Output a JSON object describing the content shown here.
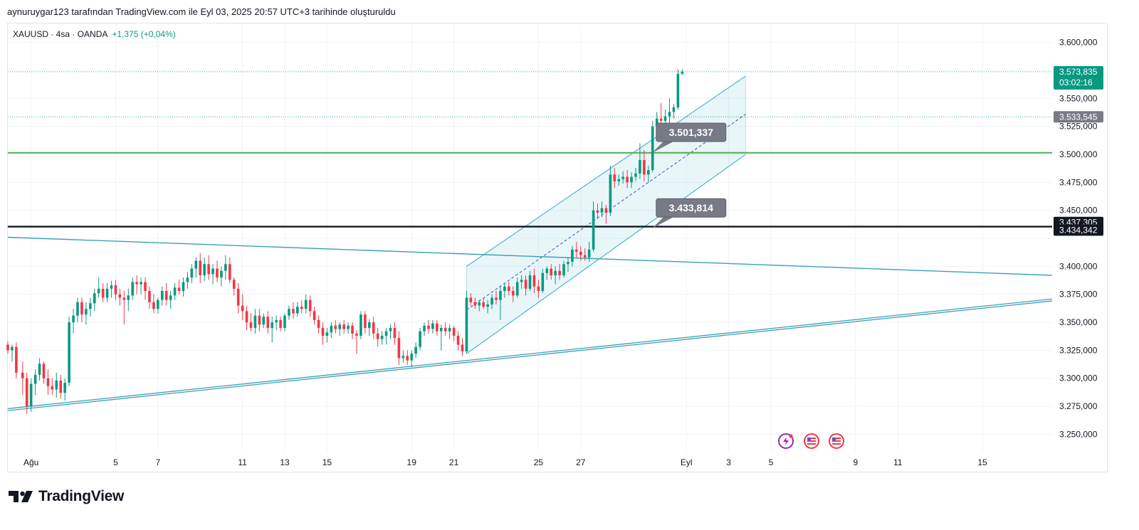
{
  "header": {
    "caption": "aynuruygar123 tarafından TradingView.com ile Eyl 03, 2025 20:57 UTC+3 tarihinde oluşturuldu"
  },
  "legend": {
    "symbol": "XAUUSD · 4sa · OANDA",
    "change": "+1,375 (+0,04%)"
  },
  "brand": {
    "name": "TradingView"
  },
  "colors": {
    "up": "#089981",
    "down": "#f23645",
    "channel": "#4fb8cc",
    "green_line": "#4caf50",
    "black_line": "#131722"
  },
  "chart_data": {
    "type": "candlestick",
    "y_ticks": [
      3250,
      3275,
      3300,
      3325,
      3350,
      3375,
      3400,
      3425,
      3450,
      3475,
      3500,
      3525,
      3550,
      3575,
      3600
    ],
    "y_tick_labels": [
      "3.250,000",
      "3.275,000",
      "3.300,000",
      "3.325,000",
      "3.350,000",
      "3.375,000",
      "3.400,000",
      "",
      "3.450,000",
      "3.475,000",
      "3.500,000",
      "3.525,000",
      "3.550,000",
      "",
      "3.600,000"
    ],
    "ylim": [
      3235,
      3617
    ],
    "x_labels": [
      "Ağu",
      "5",
      "7",
      "11",
      "13",
      "15",
      "19",
      "21",
      "25",
      "27",
      "Eyl",
      "3",
      "5",
      "9",
      "11",
      "15"
    ],
    "x_label_days": [
      1,
      5,
      7,
      11,
      13,
      15,
      19,
      21,
      25,
      27,
      32,
      34,
      36,
      40,
      42,
      46
    ],
    "xlim": [
      -0.1,
      49.3
    ],
    "candles": [
      [
        -0.1,
        3330,
        3333,
        3322,
        3325
      ],
      [
        0.1,
        3325,
        3330,
        3315,
        3328
      ],
      [
        0.3,
        3328,
        3332,
        3300,
        3305
      ],
      [
        0.6,
        3305,
        3315,
        3285,
        3300
      ],
      [
        0.8,
        3300,
        3305,
        3268,
        3275
      ],
      [
        1.0,
        3275,
        3300,
        3270,
        3295
      ],
      [
        1.2,
        3295,
        3308,
        3285,
        3303
      ],
      [
        1.4,
        3303,
        3318,
        3298,
        3313
      ],
      [
        1.6,
        3313,
        3315,
        3295,
        3300
      ],
      [
        1.8,
        3300,
        3308,
        3285,
        3293
      ],
      [
        2.0,
        3293,
        3300,
        3285,
        3290
      ],
      [
        2.2,
        3290,
        3305,
        3283,
        3298
      ],
      [
        2.4,
        3298,
        3303,
        3282,
        3287
      ],
      [
        2.6,
        3287,
        3300,
        3280,
        3296
      ],
      [
        2.8,
        3296,
        3355,
        3293,
        3350
      ],
      [
        3.0,
        3350,
        3362,
        3340,
        3356
      ],
      [
        3.2,
        3356,
        3372,
        3350,
        3368
      ],
      [
        3.4,
        3368,
        3372,
        3350,
        3357
      ],
      [
        3.6,
        3357,
        3368,
        3348,
        3362
      ],
      [
        3.8,
        3362,
        3372,
        3355,
        3367
      ],
      [
        4.0,
        3367,
        3380,
        3360,
        3376
      ],
      [
        4.2,
        3376,
        3390,
        3372,
        3380
      ],
      [
        4.4,
        3380,
        3385,
        3368,
        3372
      ],
      [
        4.6,
        3372,
        3385,
        3368,
        3380
      ],
      [
        4.8,
        3380,
        3387,
        3372,
        3383
      ],
      [
        5.0,
        3383,
        3388,
        3370,
        3375
      ],
      [
        5.2,
        3375,
        3380,
        3365,
        3372
      ],
      [
        5.4,
        3372,
        3378,
        3348,
        3370
      ],
      [
        5.6,
        3370,
        3380,
        3360,
        3374
      ],
      [
        5.8,
        3374,
        3390,
        3370,
        3386
      ],
      [
        6.0,
        3386,
        3392,
        3375,
        3384
      ],
      [
        6.2,
        3384,
        3390,
        3375,
        3386
      ],
      [
        6.4,
        3386,
        3390,
        3370,
        3378
      ],
      [
        6.6,
        3378,
        3382,
        3362,
        3368
      ],
      [
        6.8,
        3368,
        3375,
        3358,
        3362
      ],
      [
        7.0,
        3362,
        3372,
        3358,
        3370
      ],
      [
        7.2,
        3370,
        3382,
        3365,
        3378
      ],
      [
        7.4,
        3378,
        3385,
        3365,
        3370
      ],
      [
        7.6,
        3370,
        3378,
        3362,
        3374
      ],
      [
        7.8,
        3374,
        3385,
        3370,
        3381
      ],
      [
        8.0,
        3381,
        3388,
        3375,
        3378
      ],
      [
        8.2,
        3378,
        3390,
        3373,
        3386
      ],
      [
        8.4,
        3386,
        3395,
        3380,
        3390
      ],
      [
        8.6,
        3390,
        3402,
        3385,
        3398
      ],
      [
        8.8,
        3398,
        3408,
        3390,
        3405
      ],
      [
        9.0,
        3405,
        3412,
        3385,
        3392
      ],
      [
        9.2,
        3392,
        3408,
        3387,
        3402
      ],
      [
        9.4,
        3402,
        3410,
        3388,
        3393
      ],
      [
        9.6,
        3393,
        3402,
        3384,
        3398
      ],
      [
        9.8,
        3398,
        3405,
        3386,
        3390
      ],
      [
        10.0,
        3390,
        3400,
        3382,
        3396
      ],
      [
        10.2,
        3396,
        3410,
        3388,
        3402
      ],
      [
        10.4,
        3402,
        3408,
        3385,
        3388
      ],
      [
        10.6,
        3388,
        3390,
        3374,
        3380
      ],
      [
        10.8,
        3380,
        3385,
        3358,
        3365
      ],
      [
        11.0,
        3365,
        3375,
        3352,
        3360
      ],
      [
        11.2,
        3360,
        3365,
        3343,
        3350
      ],
      [
        11.4,
        3350,
        3358,
        3342,
        3345
      ],
      [
        11.6,
        3345,
        3362,
        3340,
        3356
      ],
      [
        11.8,
        3356,
        3362,
        3342,
        3348
      ],
      [
        12.0,
        3348,
        3358,
        3345,
        3355
      ],
      [
        12.2,
        3355,
        3360,
        3340,
        3345
      ],
      [
        12.4,
        3345,
        3355,
        3332,
        3350
      ],
      [
        12.6,
        3350,
        3356,
        3343,
        3352
      ],
      [
        12.8,
        3352,
        3355,
        3342,
        3345
      ],
      [
        13.0,
        3345,
        3358,
        3342,
        3356
      ],
      [
        13.2,
        3356,
        3365,
        3352,
        3362
      ],
      [
        13.4,
        3362,
        3368,
        3353,
        3358
      ],
      [
        13.6,
        3358,
        3368,
        3355,
        3364
      ],
      [
        13.8,
        3364,
        3370,
        3358,
        3362
      ],
      [
        14.0,
        3362,
        3375,
        3358,
        3370
      ],
      [
        14.2,
        3370,
        3374,
        3355,
        3360
      ],
      [
        14.4,
        3360,
        3364,
        3348,
        3352
      ],
      [
        14.6,
        3352,
        3356,
        3340,
        3345
      ],
      [
        14.8,
        3345,
        3350,
        3330,
        3338
      ],
      [
        15.0,
        3338,
        3345,
        3332,
        3341
      ],
      [
        15.2,
        3341,
        3350,
        3336,
        3347
      ],
      [
        15.4,
        3347,
        3352,
        3340,
        3344
      ],
      [
        15.6,
        3344,
        3350,
        3338,
        3348
      ],
      [
        15.8,
        3348,
        3352,
        3340,
        3344
      ],
      [
        16.0,
        3344,
        3350,
        3340,
        3347
      ],
      [
        16.2,
        3347,
        3350,
        3335,
        3340
      ],
      [
        16.4,
        3340,
        3343,
        3322,
        3338
      ],
      [
        16.6,
        3338,
        3360,
        3335,
        3357
      ],
      [
        16.8,
        3357,
        3360,
        3340,
        3345
      ],
      [
        17.0,
        3345,
        3353,
        3338,
        3350
      ],
      [
        17.2,
        3350,
        3355,
        3335,
        3340
      ],
      [
        17.4,
        3340,
        3345,
        3328,
        3335
      ],
      [
        17.6,
        3335,
        3342,
        3330,
        3338
      ],
      [
        17.8,
        3338,
        3345,
        3330,
        3342
      ],
      [
        18.0,
        3342,
        3348,
        3335,
        3345
      ],
      [
        18.2,
        3345,
        3350,
        3330,
        3336
      ],
      [
        18.4,
        3336,
        3342,
        3312,
        3318
      ],
      [
        18.6,
        3318,
        3325,
        3314,
        3320
      ],
      [
        18.8,
        3320,
        3325,
        3312,
        3316
      ],
      [
        19.0,
        3316,
        3325,
        3310,
        3322
      ],
      [
        19.2,
        3322,
        3332,
        3318,
        3328
      ],
      [
        19.4,
        3328,
        3345,
        3325,
        3342
      ],
      [
        19.6,
        3342,
        3350,
        3338,
        3347
      ],
      [
        19.8,
        3347,
        3352,
        3340,
        3344
      ],
      [
        20.0,
        3344,
        3352,
        3340,
        3349
      ],
      [
        20.2,
        3349,
        3352,
        3338,
        3342
      ],
      [
        20.4,
        3342,
        3348,
        3325,
        3345
      ],
      [
        20.6,
        3345,
        3350,
        3338,
        3342
      ],
      [
        20.8,
        3342,
        3348,
        3335,
        3345
      ],
      [
        21.0,
        3345,
        3347,
        3333,
        3338
      ],
      [
        21.2,
        3338,
        3342,
        3325,
        3330
      ],
      [
        21.4,
        3330,
        3336,
        3320,
        3324
      ],
      [
        21.6,
        3324,
        3378,
        3322,
        3372
      ],
      [
        21.8,
        3372,
        3376,
        3365,
        3368
      ],
      [
        22.0,
        3368,
        3372,
        3362,
        3365
      ],
      [
        22.2,
        3365,
        3370,
        3360,
        3368
      ],
      [
        22.4,
        3368,
        3372,
        3362,
        3364
      ],
      [
        22.6,
        3364,
        3370,
        3358,
        3366
      ],
      [
        22.8,
        3366,
        3375,
        3362,
        3372
      ],
      [
        23.0,
        3372,
        3378,
        3366,
        3370
      ],
      [
        23.2,
        3370,
        3382,
        3352,
        3378
      ],
      [
        23.4,
        3378,
        3385,
        3372,
        3382
      ],
      [
        23.6,
        3382,
        3386,
        3374,
        3378
      ],
      [
        23.8,
        3378,
        3382,
        3368,
        3374
      ],
      [
        24.0,
        3374,
        3390,
        3372,
        3386
      ],
      [
        24.2,
        3386,
        3392,
        3380,
        3388
      ],
      [
        24.4,
        3388,
        3392,
        3374,
        3380
      ],
      [
        24.6,
        3380,
        3396,
        3378,
        3392
      ],
      [
        24.8,
        3392,
        3398,
        3376,
        3382
      ],
      [
        25.0,
        3382,
        3388,
        3372,
        3378
      ],
      [
        25.2,
        3378,
        3398,
        3376,
        3394
      ],
      [
        25.4,
        3394,
        3400,
        3388,
        3398
      ],
      [
        25.6,
        3398,
        3402,
        3388,
        3392
      ],
      [
        25.8,
        3392,
        3400,
        3384,
        3396
      ],
      [
        26.0,
        3396,
        3402,
        3388,
        3392
      ],
      [
        26.2,
        3392,
        3405,
        3390,
        3402
      ],
      [
        26.4,
        3402,
        3408,
        3395,
        3404
      ],
      [
        26.6,
        3404,
        3418,
        3400,
        3415
      ],
      [
        26.8,
        3415,
        3422,
        3408,
        3413
      ],
      [
        27.0,
        3413,
        3418,
        3405,
        3410
      ],
      [
        27.2,
        3410,
        3416,
        3405,
        3408
      ],
      [
        27.4,
        3408,
        3422,
        3404,
        3415
      ],
      [
        27.6,
        3415,
        3458,
        3413,
        3450
      ],
      [
        27.8,
        3450,
        3456,
        3442,
        3448
      ],
      [
        28.0,
        3448,
        3458,
        3444,
        3452
      ],
      [
        28.2,
        3452,
        3455,
        3438,
        3448
      ],
      [
        28.4,
        3448,
        3490,
        3445,
        3482
      ],
      [
        28.6,
        3482,
        3488,
        3470,
        3476
      ],
      [
        28.8,
        3476,
        3482,
        3472,
        3478
      ],
      [
        29.0,
        3478,
        3485,
        3474,
        3480
      ],
      [
        29.2,
        3480,
        3486,
        3470,
        3475
      ],
      [
        29.4,
        3475,
        3484,
        3470,
        3480
      ],
      [
        29.6,
        3480,
        3488,
        3476,
        3483
      ],
      [
        29.8,
        3483,
        3510,
        3478,
        3495
      ],
      [
        30.0,
        3495,
        3504,
        3476,
        3482
      ],
      [
        30.2,
        3482,
        3490,
        3475,
        3486
      ],
      [
        30.4,
        3486,
        3530,
        3484,
        3525
      ],
      [
        30.6,
        3525,
        3538,
        3520,
        3532
      ],
      [
        30.8,
        3532,
        3546,
        3526,
        3530
      ],
      [
        31.0,
        3530,
        3540,
        3524,
        3534
      ],
      [
        31.2,
        3534,
        3550,
        3528,
        3538
      ],
      [
        31.4,
        3538,
        3545,
        3532,
        3542
      ],
      [
        31.6,
        3542,
        3576,
        3540,
        3572
      ],
      [
        31.8,
        3572,
        3576,
        3571,
        3574
      ]
    ],
    "last_price": 3573.835,
    "last_price_label": "3.573,835",
    "countdown": "03:02:16",
    "line_tags": [
      {
        "value": 3533.545,
        "label": "3.533,545",
        "color": "#787b86"
      },
      {
        "value": 3437.305,
        "label": "3.437,305",
        "color": "#131722"
      },
      {
        "value": 3434.342,
        "label": "3.434,342",
        "color": "#131722"
      }
    ],
    "horizontal_lines": [
      {
        "value": 3501.5,
        "color": "#4caf50",
        "width": 2
      },
      {
        "value": 3435.5,
        "color": "#131722",
        "width": 2.4
      }
    ],
    "dotted_lines": [
      3573.835,
      3533.545
    ],
    "trendlines": [
      {
        "from": [
          -0.1,
          3426
        ],
        "to": [
          49.3,
          3392
        ],
        "style": "single"
      },
      {
        "from": [
          -0.1,
          3272
        ],
        "to": [
          49.3,
          3370
        ],
        "style": "double"
      }
    ],
    "channel": {
      "x_start": 21.6,
      "x_end": 34.8,
      "upper": [
        3400,
        3570
      ],
      "mid": [
        3361,
        3536
      ],
      "lower": [
        3322,
        3500
      ]
    },
    "callouts": [
      {
        "label": "3.501,337",
        "x": 30.3,
        "y": 3501.337
      },
      {
        "label": "3.433,814",
        "x": 30.3,
        "y": 3433.814
      }
    ]
  }
}
